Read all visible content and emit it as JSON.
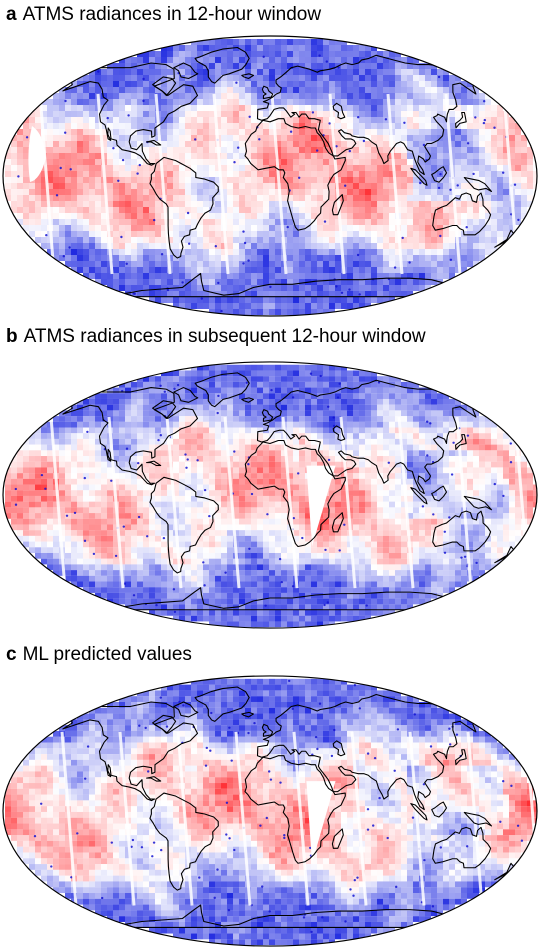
{
  "figure": {
    "panels": [
      {
        "letter": "a",
        "title": "ATMS radiances in 12-hour window"
      },
      {
        "letter": "b",
        "title": "ATMS radiances in subsequent 12-hour window"
      },
      {
        "letter": "c",
        "title": "ML predicted values"
      }
    ]
  },
  "colors": {
    "positive": "#e8363a",
    "negative": "#2b35d6",
    "neutral": "#ffffff",
    "coastline": "#000000"
  },
  "map": {
    "projection": "robinson",
    "style": "diverging red-white-blue point field with black coastlines"
  }
}
